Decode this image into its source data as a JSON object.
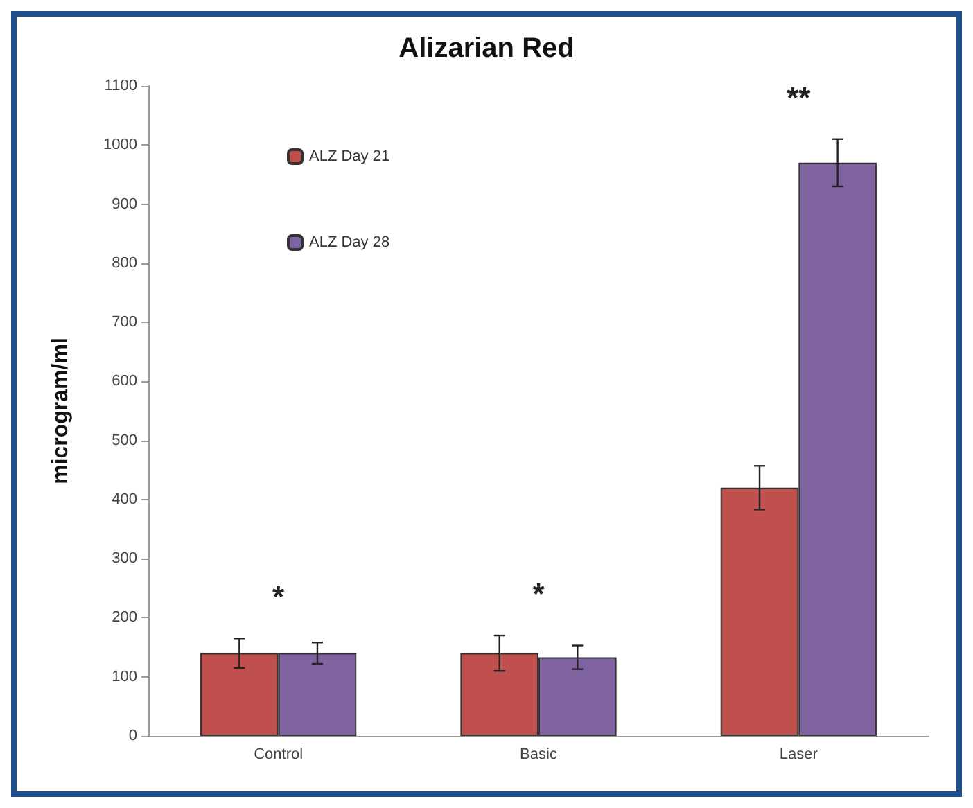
{
  "chart_data": {
    "type": "bar",
    "title": "Alizarian Red",
    "ylabel": "microgram/ml",
    "categories": [
      "Control",
      "Basic",
      "Laser"
    ],
    "series": [
      {
        "name": "ALZ Day 21",
        "color": "#c0504d",
        "values": [
          140,
          140,
          420
        ],
        "errors": [
          25,
          30,
          37
        ]
      },
      {
        "name": "ALZ Day 28",
        "color": "#8064a2",
        "values": [
          140,
          133,
          970
        ],
        "errors": [
          18,
          20,
          40
        ]
      }
    ],
    "ylim": [
      0,
      1100
    ],
    "yticks": [
      0,
      100,
      200,
      300,
      400,
      500,
      600,
      700,
      800,
      900,
      1000,
      1100
    ],
    "grid": false,
    "legend": "top left",
    "annotations": [
      "*",
      "*",
      "**"
    ]
  }
}
